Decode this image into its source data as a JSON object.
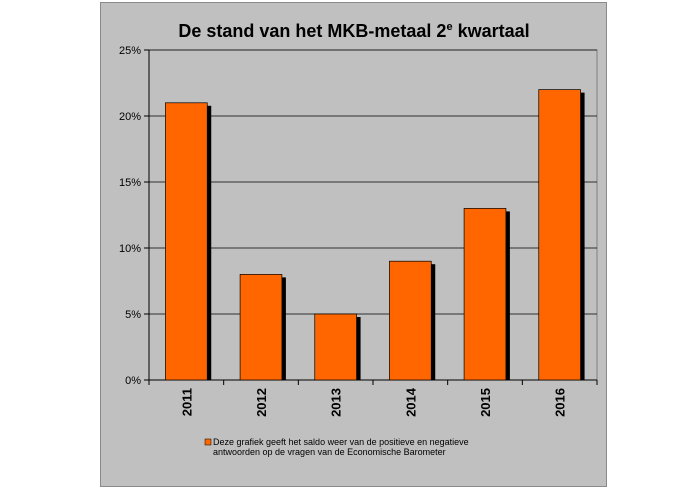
{
  "chart_data": {
    "type": "bar",
    "title": "De stand van het MKB-metaal 2",
    "title_superscript": "e",
    "title_suffix": " kwartaal",
    "categories": [
      "2011",
      "2012",
      "2013",
      "2014",
      "2015",
      "2016"
    ],
    "series": [
      {
        "name": "Deze grafiek geeft het saldo weer van de positieve en negatieve antwoorden op de vragen van de Economische Barometer",
        "values": [
          21,
          8,
          5,
          9,
          13,
          22
        ],
        "color": "#ff6600"
      }
    ],
    "ylim": [
      0,
      25
    ],
    "yticks": [
      "0%",
      "5%",
      "10%",
      "15%",
      "20%",
      "25%"
    ],
    "legend_lines": [
      "Deze grafiek geeft het saldo weer van de positieve en negatieve",
      "antwoorden op de vragen van de Economische Barometer"
    ],
    "grid": true,
    "legend_position": "bottom",
    "plot_background": "#c0c0c0",
    "shadow_color": "#000000"
  }
}
